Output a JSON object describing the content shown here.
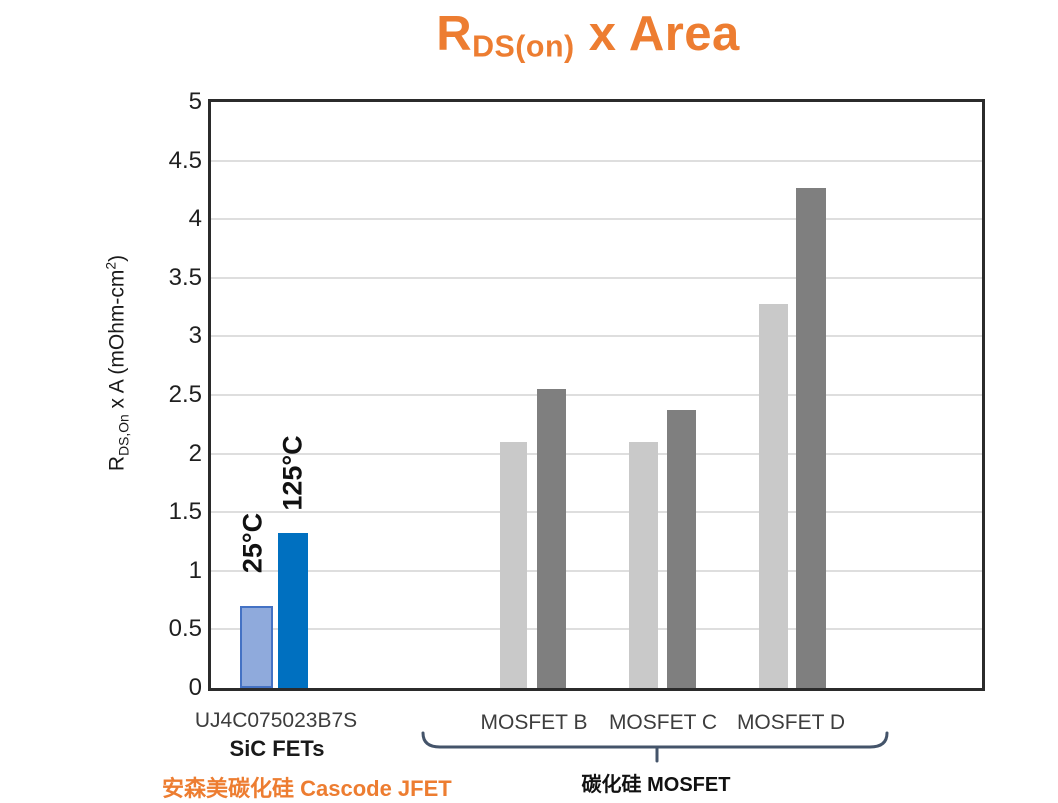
{
  "title": {
    "r": "R",
    "sub": "DS(on)",
    "rest": " x Area",
    "color": "#ED7D31"
  },
  "y_axis": {
    "label_r": "R",
    "label_sub": "DS,On",
    "label_mid": " x A (mOhm-cm",
    "label_sup": "2",
    "label_end": ")",
    "min": 0,
    "max": 5,
    "step": 0.5
  },
  "annotations": {
    "sic_fets": "SiC FETs",
    "jfet_label": "安森美碳化硅 Cascode JFET",
    "mosfet_label": "碳化硅 MOSFET"
  },
  "colors": {
    "accent_orange": "#ED7D31",
    "bar_blue_light_fill": "#8FAADC",
    "bar_blue_light_border": "#4472C4",
    "bar_blue_dark": "#0070C0",
    "bar_gray_light": "#C9C9C9",
    "bar_gray_dark": "#7F7F7F",
    "gridline": "#DEDEDE",
    "axis_border": "#2B2B2B",
    "brace": "#44546A"
  },
  "chart_data": {
    "type": "bar",
    "title": "RDS(on) x Area",
    "xlabel": "",
    "ylabel": "RDS,On x A (mOhm-cm2)",
    "ylim": [
      0,
      5
    ],
    "ytick_step": 0.5,
    "grid": true,
    "legend_position": "rotated labels above first-group bars",
    "categories": [
      "UJ4C075023B7S",
      "MOSFET B",
      "MOSFET C",
      "MOSFET D"
    ],
    "series": [
      {
        "name": "25°C",
        "values": [
          0.7,
          2.1,
          2.1,
          3.28
        ]
      },
      {
        "name": "125°C",
        "values": [
          1.32,
          2.55,
          2.37,
          4.27
        ]
      }
    ],
    "group_notes": [
      "SiC FETs (blue, highlighted)",
      "SiC MOSFET (gray)",
      "SiC MOSFET (gray)",
      "SiC MOSFET (gray)"
    ]
  }
}
